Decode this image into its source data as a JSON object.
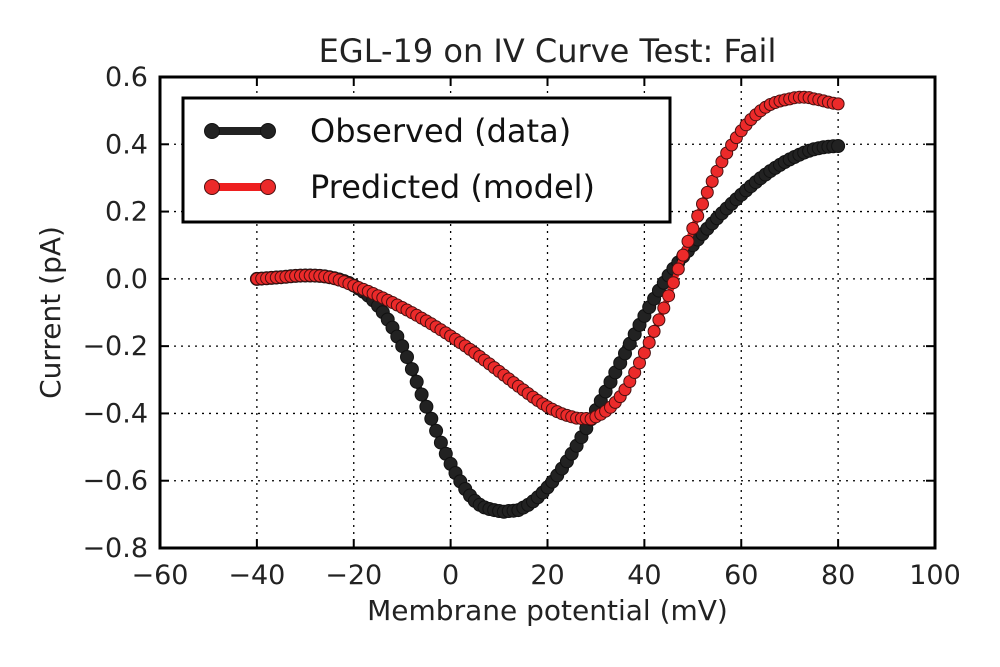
{
  "chart_data": {
    "type": "scatter",
    "title": "EGL-19 on IV Curve Test: Fail",
    "xlabel": "Membrane potential (mV)",
    "ylabel": "Current (pA)",
    "xlim": [
      -60,
      100
    ],
    "ylim": [
      -0.8,
      0.6
    ],
    "x_ticks": [
      -60,
      -40,
      -20,
      0,
      20,
      40,
      60,
      80,
      100
    ],
    "x_tick_labels": [
      "−60",
      "−40",
      "−20",
      "0",
      "20",
      "40",
      "60",
      "80",
      "100"
    ],
    "y_ticks": [
      0.6,
      0.4,
      0.2,
      0.0,
      -0.2,
      -0.4,
      -0.6,
      -0.8
    ],
    "y_tick_labels": [
      "0.6",
      "0.4",
      "0.2",
      "0.0",
      "−0.2",
      "−0.4",
      "−0.6",
      "−0.8"
    ],
    "grid": true,
    "legend_position": "top-left",
    "series": [
      {
        "name": "Observed (data)",
        "color": "#222222",
        "marker_color": "#222222",
        "x": [
          -40,
          -35,
          -30,
          -25,
          -20,
          -15,
          -10,
          -5,
          0,
          5,
          10,
          12,
          15,
          20,
          25,
          30,
          35,
          40,
          45,
          50,
          55,
          60,
          65,
          70,
          75,
          80
        ],
        "y": [
          0.0,
          0.005,
          0.01,
          0.005,
          -0.02,
          -0.08,
          -0.2,
          -0.38,
          -0.55,
          -0.66,
          -0.69,
          -0.69,
          -0.68,
          -0.62,
          -0.52,
          -0.39,
          -0.25,
          -0.11,
          0.01,
          0.1,
          0.18,
          0.25,
          0.31,
          0.355,
          0.385,
          0.395
        ]
      },
      {
        "name": "Predicted (model)",
        "color": "#ee1f1f",
        "marker_color": "#ec2a2a",
        "x": [
          -40,
          -35,
          -30,
          -25,
          -20,
          -15,
          -10,
          -5,
          0,
          5,
          10,
          15,
          20,
          25,
          28,
          30,
          35,
          40,
          45,
          50,
          55,
          60,
          65,
          70,
          73,
          75,
          80
        ],
        "y": [
          0.0,
          0.005,
          0.01,
          0.005,
          -0.02,
          -0.05,
          -0.085,
          -0.125,
          -0.17,
          -0.22,
          -0.275,
          -0.33,
          -0.38,
          -0.41,
          -0.415,
          -0.41,
          -0.35,
          -0.22,
          -0.05,
          0.15,
          0.32,
          0.44,
          0.51,
          0.535,
          0.54,
          0.535,
          0.52
        ]
      }
    ]
  }
}
